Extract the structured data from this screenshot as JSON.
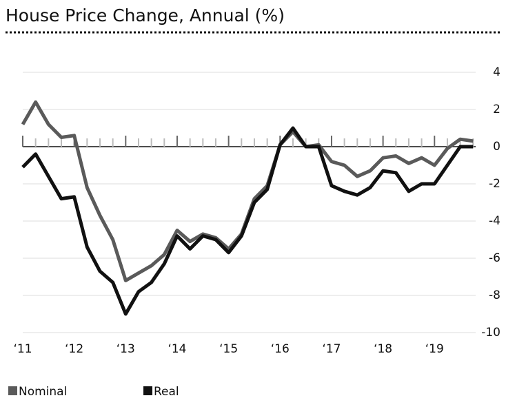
{
  "chart_data": {
    "type": "line",
    "title": "House Price Change, Annual (%)",
    "x": [
      2011,
      2011.25,
      2011.5,
      2011.75,
      2012,
      2012.25,
      2012.5,
      2012.75,
      2013,
      2013.25,
      2013.5,
      2013.75,
      2014,
      2014.25,
      2014.5,
      2014.75,
      2015,
      2015.25,
      2015.5,
      2015.75,
      2016,
      2016.25,
      2016.5,
      2016.75,
      2017,
      2017.25,
      2017.5,
      2017.75,
      2018,
      2018.25,
      2018.5,
      2018.75,
      2019,
      2019.25,
      2019.5,
      2019.75
    ],
    "series": [
      {
        "name": "Nominal",
        "color": "#5a5a5a",
        "values": [
          1.2,
          2.4,
          1.2,
          0.5,
          0.6,
          -2.2,
          -3.7,
          -5.0,
          -7.2,
          -6.8,
          -6.4,
          -5.8,
          -4.5,
          -5.1,
          -4.7,
          -4.9,
          -5.5,
          -4.7,
          -2.8,
          -2.1,
          0.1,
          0.8,
          0.0,
          0.1,
          -0.8,
          -1.0,
          -1.6,
          -1.3,
          -0.6,
          -0.5,
          -0.9,
          -0.6,
          -1.0,
          -0.1,
          0.4,
          0.3
        ]
      },
      {
        "name": "Real",
        "color": "#111111",
        "values": [
          -1.1,
          -0.4,
          -1.6,
          -2.8,
          -2.7,
          -5.4,
          -6.7,
          -7.3,
          -9.0,
          -7.8,
          -7.3,
          -6.3,
          -4.8,
          -5.5,
          -4.8,
          -5.0,
          -5.7,
          -4.8,
          -3.0,
          -2.3,
          0.1,
          1.0,
          0.0,
          0.0,
          -2.1,
          -2.4,
          -2.6,
          -2.2,
          -1.3,
          -1.4,
          -2.4,
          -2.0,
          -2.0,
          -1.0,
          0.0,
          0.0
        ]
      }
    ],
    "xlim": [
      2011,
      2019.8
    ],
    "xticks": [
      {
        "value": 2011,
        "label": "‘11"
      },
      {
        "value": 2012,
        "label": "‘12"
      },
      {
        "value": 2013,
        "label": "‘13"
      },
      {
        "value": 2014,
        "label": "‘14"
      },
      {
        "value": 2015,
        "label": "‘15"
      },
      {
        "value": 2016,
        "label": "‘16"
      },
      {
        "value": 2017,
        "label": "‘17"
      },
      {
        "value": 2018,
        "label": "‘18"
      },
      {
        "value": 2019,
        "label": "‘19"
      }
    ],
    "ylim": [
      -10,
      4
    ],
    "yticks": [
      4,
      2,
      0,
      -2,
      -4,
      -6,
      -8,
      -10
    ],
    "grid": true
  }
}
